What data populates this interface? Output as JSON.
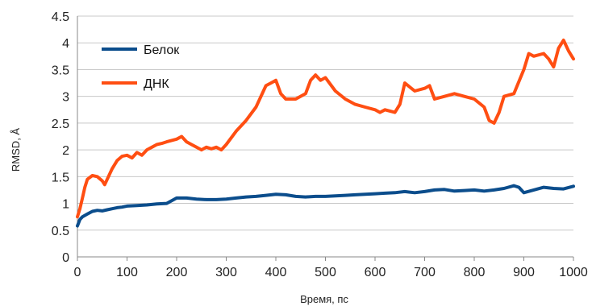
{
  "chart_data": {
    "type": "line",
    "title": "",
    "xlabel": "Время, пс",
    "ylabel": "RMSD, Å",
    "xlim": [
      0,
      1000
    ],
    "ylim": [
      0,
      4.5
    ],
    "xticks": [
      0,
      100,
      200,
      300,
      400,
      500,
      600,
      700,
      800,
      900,
      1000
    ],
    "yticks": [
      0,
      0.5,
      1,
      1.5,
      2,
      2.5,
      3,
      3.5,
      4,
      4.5
    ],
    "ytick_labels": [
      "0",
      "0.5",
      "1",
      "1.5",
      "2",
      "2.5",
      "3",
      "3.5",
      "4",
      "4.5"
    ],
    "grid": true,
    "legend_position": "top-left",
    "series": [
      {
        "name": "Белок",
        "color": "#0b4d8c",
        "x": [
          0,
          5,
          10,
          20,
          30,
          40,
          50,
          60,
          70,
          80,
          90,
          100,
          120,
          140,
          160,
          180,
          200,
          220,
          240,
          260,
          280,
          300,
          320,
          340,
          360,
          380,
          400,
          420,
          440,
          460,
          480,
          500,
          520,
          540,
          560,
          580,
          600,
          620,
          640,
          660,
          680,
          700,
          720,
          740,
          760,
          780,
          800,
          820,
          840,
          860,
          880,
          890,
          900,
          920,
          940,
          960,
          980,
          1000
        ],
        "y": [
          0.58,
          0.7,
          0.75,
          0.8,
          0.85,
          0.87,
          0.86,
          0.88,
          0.9,
          0.92,
          0.93,
          0.95,
          0.96,
          0.97,
          0.99,
          1.0,
          1.1,
          1.1,
          1.08,
          1.07,
          1.07,
          1.08,
          1.1,
          1.12,
          1.13,
          1.15,
          1.17,
          1.16,
          1.13,
          1.12,
          1.13,
          1.13,
          1.14,
          1.15,
          1.16,
          1.17,
          1.18,
          1.19,
          1.2,
          1.22,
          1.2,
          1.22,
          1.25,
          1.26,
          1.23,
          1.24,
          1.25,
          1.23,
          1.25,
          1.28,
          1.33,
          1.3,
          1.2,
          1.25,
          1.3,
          1.28,
          1.27,
          1.32
        ]
      },
      {
        "name": "ДНК",
        "color": "#ff4e12",
        "x": [
          0,
          5,
          10,
          15,
          20,
          30,
          40,
          50,
          55,
          60,
          70,
          80,
          90,
          100,
          110,
          120,
          130,
          140,
          150,
          160,
          170,
          180,
          200,
          210,
          220,
          230,
          240,
          250,
          260,
          270,
          280,
          290,
          300,
          320,
          340,
          360,
          380,
          390,
          400,
          410,
          420,
          440,
          460,
          470,
          480,
          490,
          500,
          520,
          540,
          560,
          580,
          600,
          610,
          620,
          640,
          650,
          660,
          680,
          700,
          710,
          720,
          740,
          760,
          780,
          800,
          820,
          830,
          840,
          850,
          860,
          880,
          900,
          910,
          920,
          940,
          950,
          960,
          970,
          980,
          990,
          1000
        ],
        "y": [
          0.75,
          0.9,
          1.1,
          1.3,
          1.45,
          1.52,
          1.5,
          1.42,
          1.35,
          1.45,
          1.65,
          1.8,
          1.88,
          1.9,
          1.85,
          1.95,
          1.9,
          2.0,
          2.05,
          2.1,
          2.12,
          2.15,
          2.2,
          2.25,
          2.15,
          2.1,
          2.05,
          2.0,
          2.05,
          2.02,
          2.05,
          2.0,
          2.1,
          2.35,
          2.55,
          2.8,
          3.2,
          3.25,
          3.3,
          3.05,
          2.95,
          2.95,
          3.05,
          3.3,
          3.4,
          3.3,
          3.35,
          3.1,
          2.95,
          2.85,
          2.8,
          2.75,
          2.7,
          2.75,
          2.7,
          2.85,
          3.25,
          3.1,
          3.15,
          3.2,
          2.95,
          3.0,
          3.05,
          3.0,
          2.95,
          2.8,
          2.55,
          2.5,
          2.7,
          3.0,
          3.05,
          3.5,
          3.8,
          3.75,
          3.8,
          3.7,
          3.55,
          3.9,
          4.05,
          3.85,
          3.7
        ]
      }
    ]
  }
}
